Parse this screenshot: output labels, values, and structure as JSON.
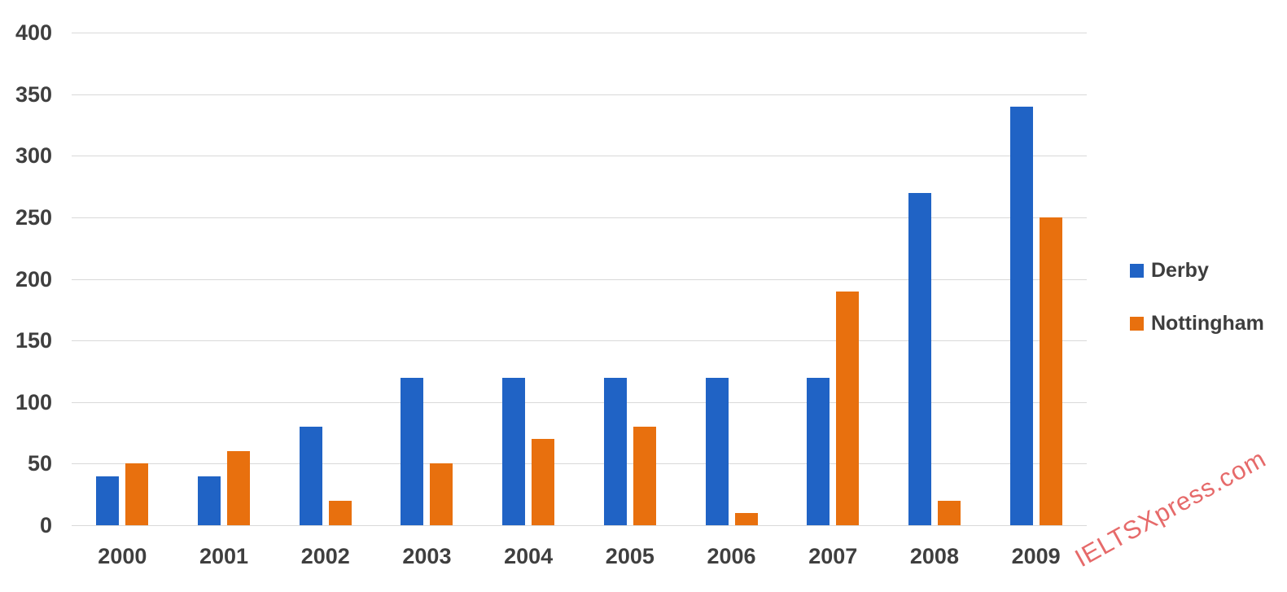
{
  "chart_data": {
    "type": "bar",
    "categories": [
      "2000",
      "2001",
      "2002",
      "2003",
      "2004",
      "2005",
      "2006",
      "2007",
      "2008",
      "2009"
    ],
    "series": [
      {
        "name": "Derby",
        "color": "#2063c5",
        "values": [
          40,
          40,
          80,
          120,
          120,
          120,
          120,
          120,
          270,
          340
        ]
      },
      {
        "name": "Nottingham",
        "color": "#e8700e",
        "values": [
          50,
          60,
          20,
          50,
          70,
          80,
          10,
          190,
          20,
          250
        ]
      }
    ],
    "title": "",
    "xlabel": "",
    "ylabel": "",
    "ylim": [
      0,
      400
    ],
    "ytick_step": 50,
    "yticks": [
      "0",
      "50",
      "100",
      "150",
      "200",
      "250",
      "300",
      "350",
      "400"
    ],
    "grid": true,
    "legend_position": "right",
    "gridline_color": "#d9d9d9",
    "axis_text_color": "#3f3f3f"
  },
  "watermark": {
    "text": "IELTSXpress.com",
    "color": "#e66a6a"
  }
}
